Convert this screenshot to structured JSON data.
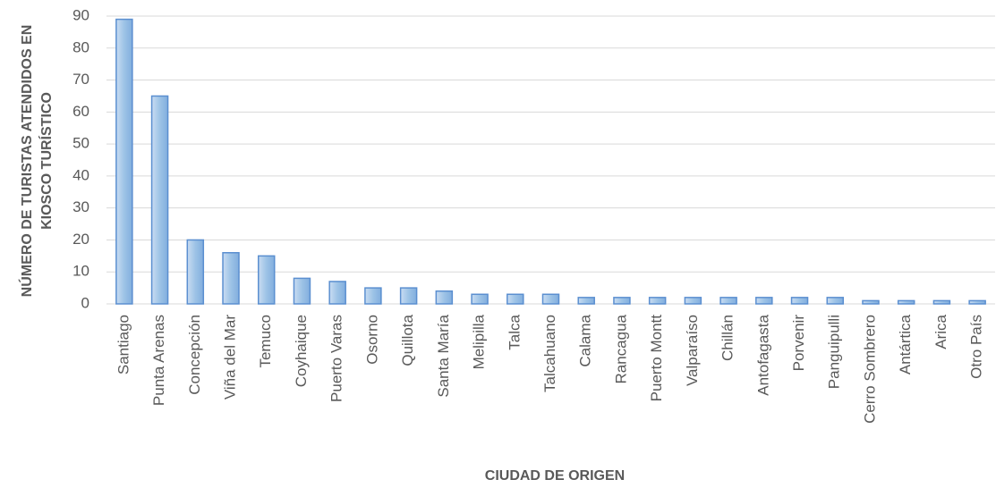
{
  "chart_data": {
    "type": "bar",
    "x_label": "CIUDAD DE ORIGEN",
    "y_label": "NÚMERO DE TURISTAS ATENDIDOS EN KIOSCO TURÍSTICO",
    "categories": [
      "Santiago",
      "Punta Arenas",
      "Concepción",
      "Viña del Mar",
      "Temuco",
      "Coyhaique",
      "Puerto Varas",
      "Osorno",
      "Quillota",
      "Santa María",
      "Melipilla",
      "Talca",
      "Talcahuano",
      "Calama",
      "Rancagua",
      "Puerto Montt",
      "Valparaíso",
      "Chillán",
      "Antofagasta",
      "Porvenir",
      "Panguipulli",
      "Cerro Sombrero",
      "Antártica",
      "Arica",
      "Otro País"
    ],
    "values": [
      89,
      65,
      20,
      16,
      15,
      8,
      7,
      5,
      5,
      4,
      3,
      3,
      3,
      2,
      2,
      2,
      2,
      2,
      2,
      2,
      2,
      1,
      1,
      1,
      1
    ],
    "color": "#9dc3e6",
    "edge_color": "#5b8fd0",
    "ylim": [
      0,
      90
    ],
    "yticks": [
      0,
      10,
      20,
      30,
      40,
      50,
      60,
      70,
      80,
      90
    ],
    "grid": true
  }
}
